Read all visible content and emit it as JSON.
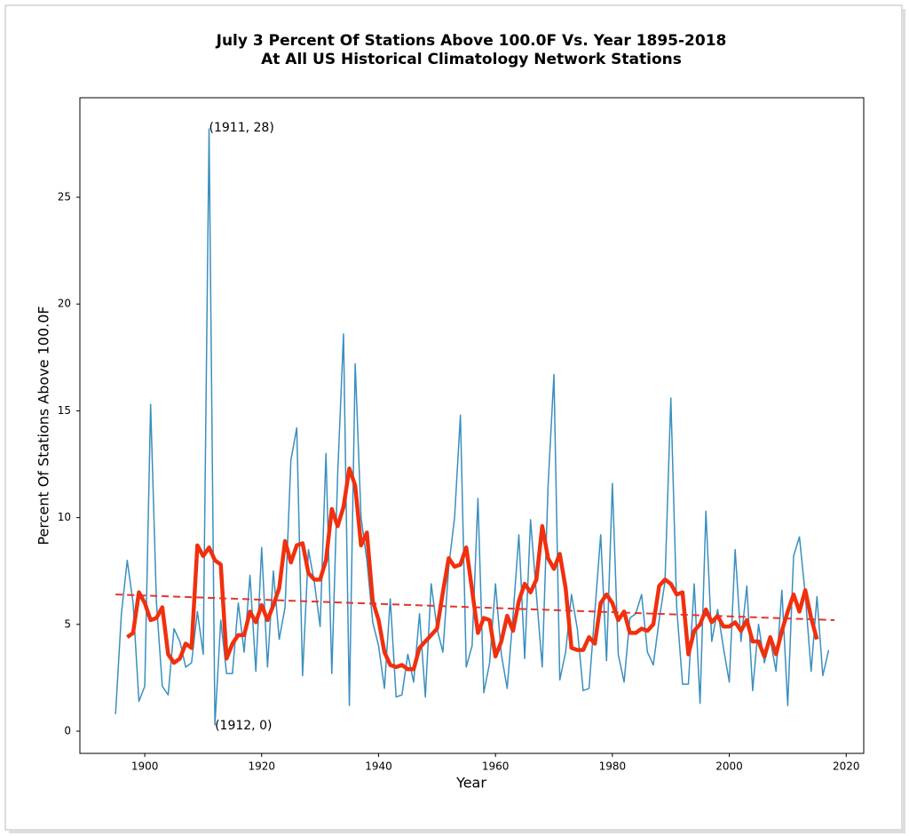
{
  "chart_data": {
    "type": "line",
    "title": [
      "July 3 Percent Of Stations Above 100.0F Vs. Year 1895-2018",
      "At All US Historical Climatology Network Stations"
    ],
    "xlabel": "Year",
    "ylabel": "Percent Of Stations Above 100.0F",
    "xlim": [
      1888.9,
      2023.0
    ],
    "ylim": [
      -1.04,
      29.66
    ],
    "xticks": [
      1900,
      1920,
      1940,
      1960,
      1980,
      2000,
      2020
    ],
    "yticks": [
      0,
      5,
      10,
      15,
      20,
      25
    ],
    "series": [
      {
        "color": "#3a8fbf",
        "linestyle": "solid",
        "x": [
          1895,
          1896,
          1897,
          1898,
          1899,
          1900,
          1901,
          1902,
          1903,
          1904,
          1905,
          1906,
          1907,
          1908,
          1909,
          1910,
          1911,
          1912,
          1913,
          1914,
          1915,
          1916,
          1917,
          1918,
          1919,
          1920,
          1921,
          1922,
          1923,
          1924,
          1925,
          1926,
          1927,
          1928,
          1929,
          1930,
          1931,
          1932,
          1933,
          1934,
          1935,
          1936,
          1937,
          1938,
          1939,
          1940,
          1941,
          1942,
          1943,
          1944,
          1945,
          1946,
          1947,
          1948,
          1949,
          1950,
          1951,
          1952,
          1953,
          1954,
          1955,
          1956,
          1957,
          1958,
          1959,
          1960,
          1961,
          1962,
          1963,
          1964,
          1965,
          1966,
          1967,
          1968,
          1969,
          1970,
          1971,
          1972,
          1973,
          1974,
          1975,
          1976,
          1977,
          1978,
          1979,
          1980,
          1981,
          1982,
          1983,
          1984,
          1985,
          1986,
          1987,
          1988,
          1989,
          1990,
          1991,
          1992,
          1993,
          1994,
          1995,
          1996,
          1997,
          1998,
          1999,
          2000,
          2001,
          2002,
          2003,
          2004,
          2005,
          2006,
          2007,
          2008,
          2009,
          2010,
          2011,
          2012,
          2013,
          2014,
          2015,
          2016,
          2017
        ],
        "values": [
          0.8,
          5.5,
          8.0,
          6.0,
          1.4,
          2.1,
          15.3,
          6.0,
          2.1,
          1.7,
          4.8,
          4.2,
          3.0,
          3.2,
          5.6,
          3.6,
          28.2,
          0.3,
          5.2,
          2.7,
          2.7,
          6.0,
          3.7,
          7.3,
          2.8,
          8.6,
          3.0,
          7.5,
          4.3,
          5.8,
          12.7,
          14.2,
          2.6,
          8.5,
          7.0,
          4.9,
          13.0,
          2.7,
          12.0,
          18.6,
          1.2,
          17.2,
          10.0,
          8.0,
          5.1,
          4.0,
          2.0,
          6.2,
          1.6,
          1.7,
          3.6,
          2.3,
          5.5,
          1.6,
          6.9,
          4.8,
          3.7,
          7.7,
          10.0,
          14.8,
          3.0,
          4.0,
          10.9,
          1.8,
          3.2,
          6.9,
          3.6,
          2.0,
          5.4,
          9.2,
          3.4,
          9.9,
          6.4,
          3.0,
          11.5,
          16.7,
          2.4,
          3.7,
          6.4,
          4.8,
          1.9,
          2.0,
          5.6,
          9.2,
          3.3,
          11.6,
          3.6,
          2.3,
          5.3,
          5.5,
          6.4,
          3.7,
          3.1,
          5.2,
          7.0,
          15.6,
          5.8,
          2.2,
          2.2,
          6.9,
          1.3,
          10.3,
          4.2,
          5.7,
          3.9,
          2.3,
          8.5,
          4.2,
          6.8,
          1.9,
          5.0,
          3.2,
          4.3,
          2.8,
          6.6,
          1.2,
          8.2,
          9.1,
          6.4,
          2.8,
          6.3,
          2.6,
          3.8
        ]
      },
      {
        "color": "#f0300e",
        "linestyle": "solid",
        "x": [
          1897,
          1898,
          1899,
          1900,
          1901,
          1902,
          1903,
          1904,
          1905,
          1906,
          1907,
          1908,
          1909,
          1910,
          1911,
          1912,
          1913,
          1914,
          1915,
          1916,
          1917,
          1918,
          1919,
          1920,
          1921,
          1922,
          1923,
          1924,
          1925,
          1926,
          1927,
          1928,
          1929,
          1930,
          1931,
          1932,
          1933,
          1934,
          1935,
          1936,
          1937,
          1938,
          1939,
          1940,
          1941,
          1942,
          1943,
          1944,
          1945,
          1946,
          1947,
          1948,
          1949,
          1950,
          1951,
          1952,
          1953,
          1954,
          1955,
          1956,
          1957,
          1958,
          1959,
          1960,
          1961,
          1962,
          1963,
          1964,
          1965,
          1966,
          1967,
          1968,
          1969,
          1970,
          1971,
          1972,
          1973,
          1974,
          1975,
          1976,
          1977,
          1978,
          1979,
          1980,
          1981,
          1982,
          1983,
          1984,
          1985,
          1986,
          1987,
          1988,
          1989,
          1990,
          1991,
          1992,
          1993,
          1994,
          1995,
          1996,
          1997,
          1998,
          1999,
          2000,
          2001,
          2002,
          2003,
          2004,
          2005,
          2006,
          2007,
          2008,
          2009,
          2010,
          2011,
          2012,
          2013,
          2014,
          2015
        ],
        "values": [
          4.4,
          4.6,
          6.5,
          6.0,
          5.2,
          5.3,
          5.8,
          3.6,
          3.2,
          3.4,
          4.1,
          3.9,
          8.7,
          8.2,
          8.6,
          8.0,
          7.8,
          3.4,
          4.1,
          4.5,
          4.5,
          5.6,
          5.1,
          5.9,
          5.2,
          5.9,
          6.7,
          8.9,
          7.9,
          8.7,
          8.8,
          7.4,
          7.1,
          7.1,
          8.0,
          10.4,
          9.6,
          10.5,
          12.3,
          11.5,
          8.7,
          9.3,
          6.1,
          5.2,
          3.7,
          3.1,
          3.0,
          3.1,
          2.9,
          2.9,
          3.9,
          4.2,
          4.5,
          4.8,
          6.5,
          8.1,
          7.7,
          7.8,
          8.6,
          6.6,
          4.6,
          5.3,
          5.2,
          3.5,
          4.2,
          5.4,
          4.7,
          6.1,
          6.9,
          6.5,
          7.1,
          9.6,
          8.1,
          7.6,
          8.3,
          6.7,
          3.9,
          3.8,
          3.8,
          4.4,
          4.1,
          6.0,
          6.4,
          6.0,
          5.2,
          5.6,
          4.6,
          4.6,
          4.8,
          4.7,
          5.0,
          6.8,
          7.1,
          6.9,
          6.4,
          6.5,
          3.6,
          4.7,
          5.0,
          5.7,
          5.1,
          5.4,
          4.9,
          4.9,
          5.1,
          4.7,
          5.2,
          4.2,
          4.2,
          3.5,
          4.4,
          3.6,
          4.7,
          5.6,
          6.4,
          5.6,
          6.6,
          5.3,
          4.3
        ]
      },
      {
        "color": "#e8322a",
        "linestyle": "dashed",
        "x": [
          1895,
          2018
        ],
        "values": [
          6.4,
          5.2
        ]
      }
    ],
    "annotations": [
      {
        "text": "(1911, 28)",
        "x": 1911,
        "y": 28
      },
      {
        "text": "(1912, 0)",
        "x": 1912,
        "y": 0
      }
    ]
  }
}
